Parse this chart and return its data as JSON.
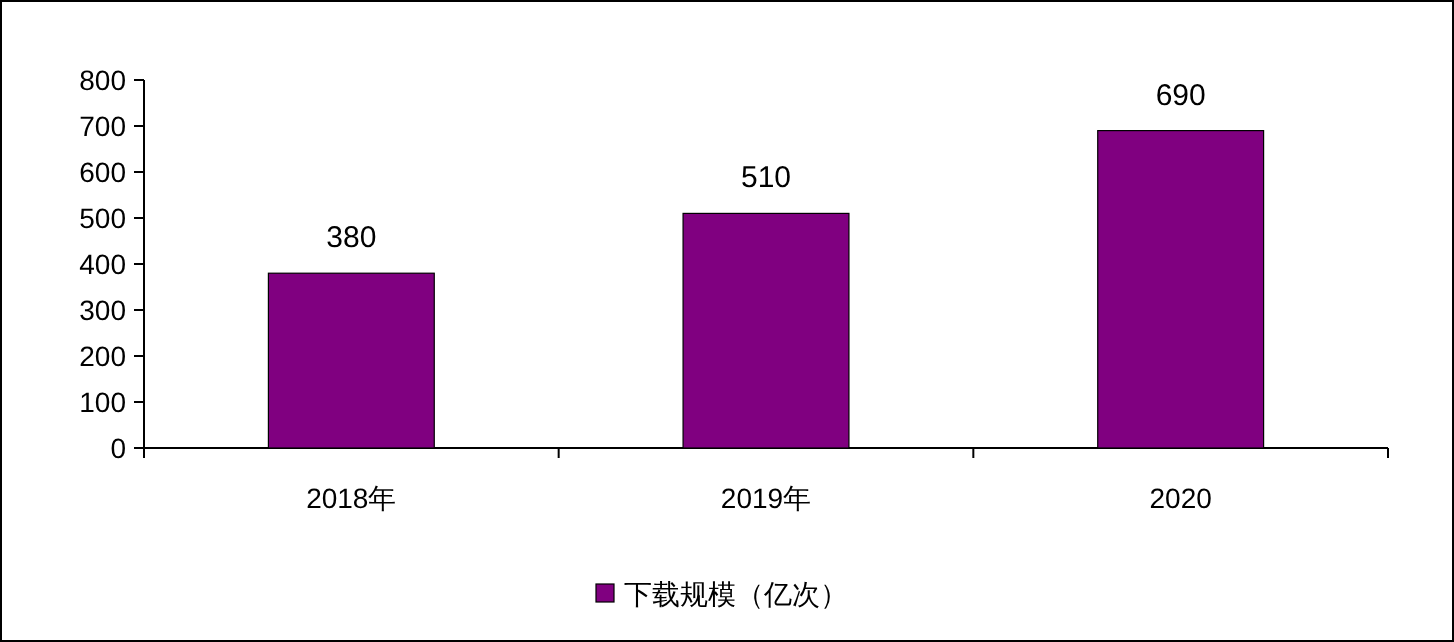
{
  "chart_data": {
    "type": "bar",
    "categories": [
      "2018年",
      "2019年",
      "2020"
    ],
    "series": [
      {
        "name": "下载规模（亿次）",
        "color": "#800080",
        "values": [
          380,
          510,
          690
        ]
      }
    ],
    "ylim": [
      0,
      800
    ],
    "yticks": [
      0,
      100,
      200,
      300,
      400,
      500,
      600,
      700,
      800
    ],
    "data_labels": true,
    "legend": "bottom"
  }
}
